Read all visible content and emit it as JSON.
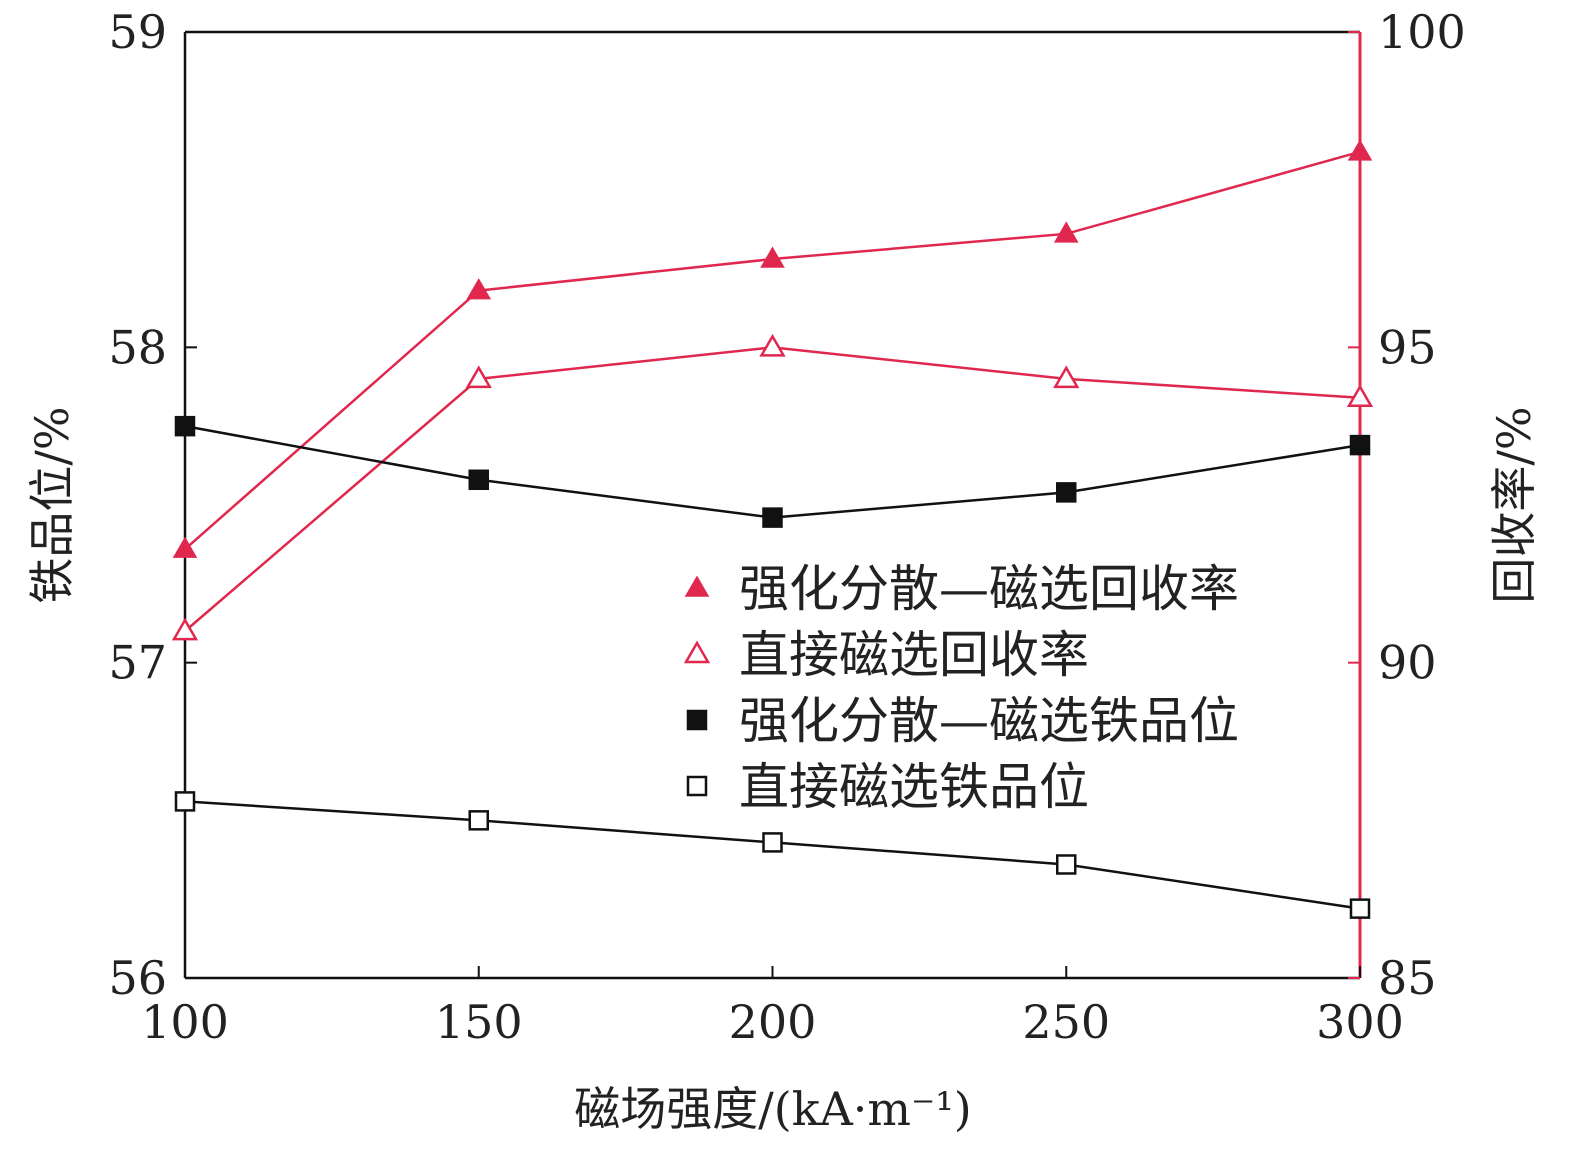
{
  "chart_data": {
    "type": "line",
    "title": "",
    "xlabel": "磁场强度/(kA·m⁻¹)",
    "ylabel_left": "铁品位/%",
    "ylabel_right": "回收率/%",
    "x": [
      100,
      150,
      200,
      250,
      300
    ],
    "x_tick_labels": [
      "100",
      "150",
      "200",
      "250",
      "300"
    ],
    "xlim": [
      100,
      300
    ],
    "ylim_left": [
      56,
      59
    ],
    "ylim_right": [
      85,
      100
    ],
    "y_left_tick_labels": [
      "56",
      "57",
      "58",
      "59"
    ],
    "y_right_tick_labels": [
      "85",
      "90",
      "95",
      "100"
    ],
    "grid": false,
    "legend_position": "center-right",
    "series": [
      {
        "name": "强化分散—磁选回收率",
        "axis": "right",
        "marker": "filled-triangle",
        "color": "#e0284f",
        "values": [
          91.8,
          95.9,
          96.4,
          96.8,
          98.1
        ]
      },
      {
        "name": "直接磁选回收率",
        "axis": "right",
        "marker": "open-triangle",
        "color": "#e0284f",
        "values": [
          90.5,
          94.5,
          95.0,
          94.5,
          94.2
        ]
      },
      {
        "name": "强化分散—磁选铁品位",
        "axis": "left",
        "marker": "filled-square",
        "color": "#111111",
        "values": [
          57.75,
          57.58,
          57.46,
          57.54,
          57.69
        ]
      },
      {
        "name": "直接磁选铁品位",
        "axis": "left",
        "marker": "open-square",
        "color": "#111111",
        "values": [
          56.56,
          56.5,
          56.43,
          56.36,
          56.22
        ]
      }
    ]
  }
}
